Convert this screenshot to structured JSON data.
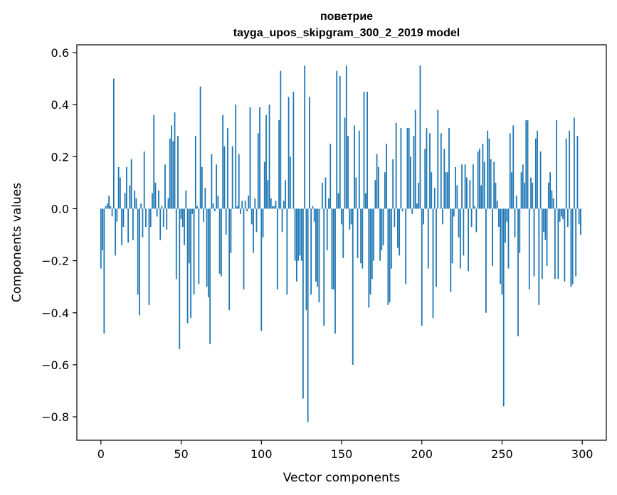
{
  "chart_data": {
    "type": "bar",
    "title_line1": "поветрие",
    "title_line2": "tayga_upos_skipgram_300_2_2019 model",
    "xlabel": "Vector components",
    "ylabel": "Components values",
    "xlim": [
      -15,
      315
    ],
    "ylim": [
      -0.89,
      0.63
    ],
    "xticks": [
      0,
      50,
      100,
      150,
      200,
      250,
      300
    ],
    "yticks": [
      -0.8,
      -0.6,
      -0.4,
      -0.2,
      0.0,
      0.2,
      0.4,
      0.6
    ],
    "ytick_labels": [
      "−0.8",
      "−0.6",
      "−0.4",
      "−0.2",
      "0.0",
      "0.2",
      "0.4",
      "0.6"
    ],
    "xtick_labels": [
      "0",
      "50",
      "100",
      "150",
      "200",
      "250",
      "300"
    ],
    "bar_color": "#1f77b4",
    "grid": false,
    "values": [
      -0.23,
      -0.16,
      -0.48,
      0.01,
      0.02,
      0.05,
      0.01,
      -0.03,
      0.5,
      -0.18,
      -0.05,
      0.16,
      0.12,
      -0.14,
      -0.07,
      0.06,
      0.16,
      -0.13,
      0.09,
      0.19,
      -0.12,
      0.07,
      0.04,
      -0.33,
      -0.41,
      0.02,
      -0.11,
      0.22,
      -0.07,
      0.0,
      -0.37,
      -0.07,
      0.06,
      0.36,
      0.1,
      -0.03,
      0.07,
      -0.12,
      0.01,
      -0.07,
      0.17,
      -0.08,
      0.04,
      0.27,
      0.32,
      0.26,
      0.37,
      -0.27,
      0.28,
      -0.54,
      -0.04,
      -0.07,
      -0.14,
      0.07,
      -0.44,
      -0.21,
      -0.42,
      -0.02,
      -0.33,
      0.28,
      0.01,
      -0.29,
      0.47,
      0.16,
      -0.05,
      0.08,
      -0.3,
      -0.34,
      -0.52,
      0.21,
      0.02,
      -0.01,
      0.17,
      0.05,
      -0.25,
      -0.26,
      0.36,
      0.24,
      -0.1,
      0.31,
      -0.39,
      -0.17,
      0.24,
      0.0,
      0.4,
      0.01,
      0.21,
      -0.02,
      0.03,
      -0.31,
      0.03,
      -0.01,
      0.05,
      0.39,
      -0.06,
      -0.17,
      0.04,
      -0.09,
      0.29,
      0.39,
      -0.47,
      -0.11,
      0.18,
      0.36,
      0.11,
      0.4,
      0.04,
      0.01,
      0.01,
      0.03,
      -0.31,
      0.34,
      0.53,
      -0.09,
      0.03,
      0.11,
      -0.33,
      0.43,
      0.2,
      0.0,
      0.45,
      -0.2,
      -0.28,
      -0.2,
      -0.18,
      -0.2,
      -0.73,
      0.55,
      -0.39,
      -0.82,
      0.43,
      -0.33,
      0.01,
      -0.05,
      -0.28,
      -0.3,
      -0.36,
      0.0,
      0.1,
      -0.45,
      0.12,
      -0.16,
      0.04,
      0.25,
      -0.31,
      -0.31,
      -0.48,
      0.53,
      0.06,
      0.51,
      -0.06,
      -0.19,
      0.35,
      0.55,
      0.28,
      -0.08,
      -0.06,
      -0.6,
      0.32,
      0.12,
      -0.19,
      0.3,
      -0.21,
      -0.23,
      0.45,
      0.06,
      0.45,
      -0.38,
      -0.33,
      -0.27,
      -0.2,
      0.11,
      0.21,
      0.16,
      -0.2,
      -0.16,
      -0.14,
      0.14,
      0.25,
      -0.37,
      -0.36,
      -0.23,
      0.19,
      -0.07,
      0.33,
      -0.15,
      -0.18,
      0.31,
      -0.01,
      0.0,
      -0.29,
      0.31,
      0.31,
      0.2,
      -0.02,
      0.28,
      0.38,
      0.02,
      0.1,
      0.55,
      -0.45,
      -0.06,
      0.23,
      0.31,
      -0.23,
      0.29,
      0.14,
      -0.42,
      0.08,
      -0.3,
      0.38,
      0.0,
      0.29,
      -0.06,
      0.23,
      0.14,
      0.14,
      0.31,
      -0.32,
      -0.21,
      -0.03,
      0.16,
      0.09,
      -0.11,
      -0.23,
      0.17,
      -0.18,
      0.17,
      0.12,
      -0.24,
      0.11,
      -0.07,
      0.17,
      0.01,
      -0.09,
      0.22,
      0.23,
      0.09,
      0.25,
      0.18,
      -0.4,
      0.3,
      0.27,
      0.19,
      -0.22,
      0.18,
      0.1,
      0.03,
      -0.07,
      -0.29,
      -0.33,
      -0.76,
      -0.13,
      -0.05,
      -0.23,
      0.29,
      0.14,
      0.32,
      -0.11,
      0.05,
      -0.49,
      -0.17,
      0.14,
      0.17,
      0.1,
      0.34,
      0.34,
      -0.31,
      0.12,
      0.1,
      -0.26,
      0.27,
      0.3,
      -0.37,
      0.22,
      -0.27,
      -0.09,
      -0.12,
      -0.22,
      0.1,
      0.14,
      0.07,
      0.04,
      -0.27,
      0.34,
      -0.27,
      -0.05,
      -0.03,
      -0.04,
      -0.28,
      0.27,
      -0.07,
      0.3,
      -0.3,
      -0.29,
      0.35,
      -0.26,
      0.28,
      -0.06,
      -0.1
    ]
  }
}
